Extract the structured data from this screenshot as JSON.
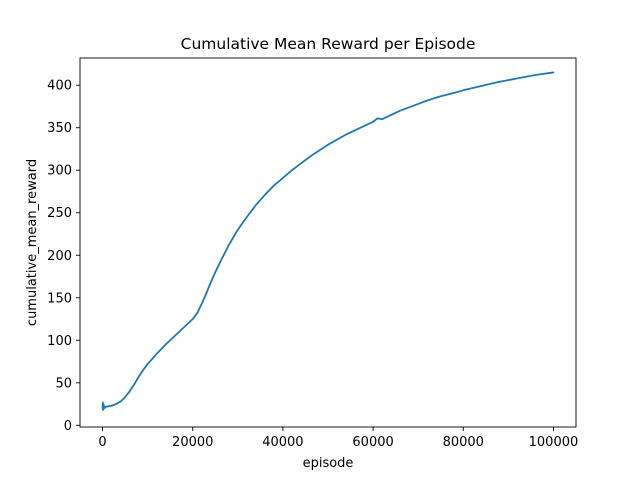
{
  "chart_data": {
    "type": "line",
    "title": "Cumulative Mean Reward per Episode",
    "xlabel": "episode",
    "ylabel": "cumulative_mean_reward",
    "xlim": [
      -5000,
      105000
    ],
    "ylim": [
      -2,
      432
    ],
    "xticks": [
      0,
      20000,
      40000,
      60000,
      80000,
      100000
    ],
    "xtick_labels": [
      "0",
      "20000",
      "40000",
      "60000",
      "80000",
      "100000"
    ],
    "yticks": [
      0,
      50,
      100,
      150,
      200,
      250,
      300,
      350,
      400
    ],
    "ytick_labels": [
      "0",
      "50",
      "100",
      "150",
      "200",
      "250",
      "300",
      "350",
      "400"
    ],
    "grid": false,
    "line_color": "#1f77b4",
    "series": [
      {
        "x": [
          0,
          50,
          100,
          200,
          400,
          700,
          1000,
          2000,
          3000,
          4000,
          5000,
          6000,
          7000,
          8000,
          9000,
          10000,
          12000,
          14000,
          16000,
          18000,
          20000,
          21000,
          22000,
          23000,
          24000,
          25000,
          26000,
          28000,
          30000,
          32000,
          34000,
          36000,
          38000,
          40000,
          42000,
          44000,
          46000,
          48000,
          50000,
          52000,
          54000,
          56000,
          58000,
          60000,
          61000,
          62000,
          64000,
          66000,
          68000,
          70000,
          72000,
          75000,
          78000,
          80000,
          84000,
          88000,
          92000,
          96000,
          100000
        ],
        "y": [
          20,
          27,
          18,
          25,
          20,
          22,
          22,
          23,
          25,
          28,
          33,
          40,
          48,
          57,
          65,
          72,
          84,
          95,
          105,
          115,
          125,
          132,
          143,
          155,
          168,
          180,
          191,
          212,
          230,
          245,
          259,
          271,
          282,
          291,
          300,
          308,
          316,
          323,
          330,
          336,
          342,
          347,
          352,
          357,
          361,
          360,
          365,
          370,
          374,
          378,
          382,
          387,
          391,
          394,
          399,
          404,
          408,
          412,
          415
        ]
      }
    ]
  }
}
